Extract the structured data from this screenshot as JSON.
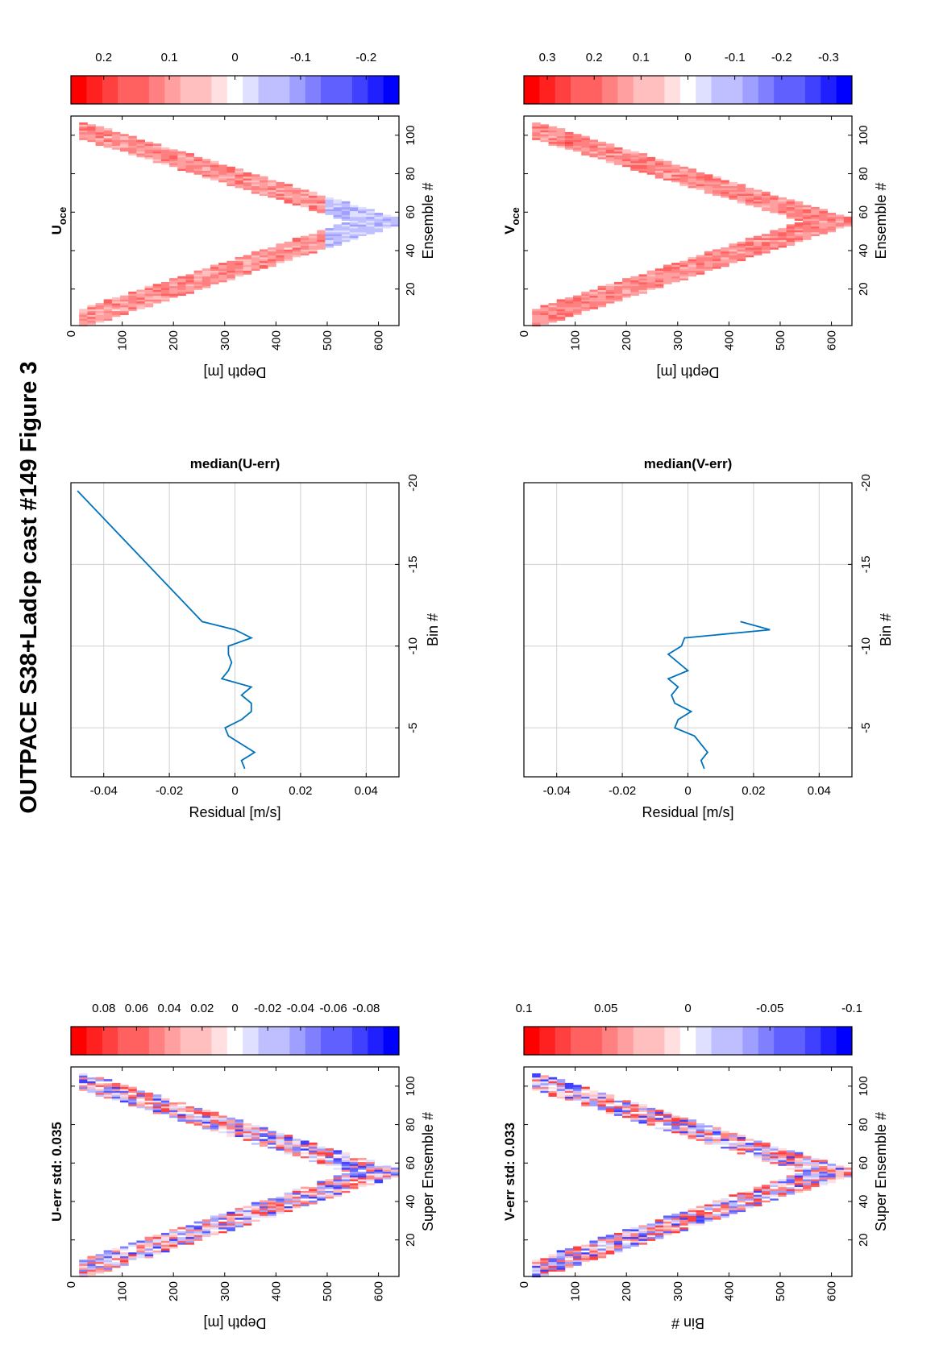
{
  "figure": {
    "title": "OUTPACE S38+Ladcp cast #149  Figure 3"
  },
  "colors": {
    "negative": "#0000ff",
    "zero": "#ffffff",
    "positive": "#ff0000",
    "line": "#0072bd",
    "grid": "#d0d0d0"
  },
  "chart_data": [
    {
      "id": "u-err",
      "type": "heatmap",
      "title": "U-err std: 0.035",
      "title_sub": "",
      "xlabel": "Super Ensemble #",
      "ylabel": "Depth [m]",
      "xlim": [
        1,
        110
      ],
      "ylim": [
        0,
        640
      ],
      "xticks": [
        "20",
        "40",
        "60",
        "80",
        "100"
      ],
      "yticks": [
        "0",
        "100",
        "200",
        "300",
        "400",
        "500",
        "600"
      ],
      "clim": [
        -0.1,
        0.1
      ],
      "colorbar_ticks": [
        "0.08",
        "0.06",
        "0.04",
        "0.02",
        "0",
        "-0.02",
        "-0.04",
        "-0.06",
        "-0.08"
      ],
      "pattern": {
        "n_ensembles": 106,
        "bottom_ensemble": 55,
        "max_depth": 640,
        "top_depth": 20,
        "band_width": 90,
        "amplitude": 0.08
      }
    },
    {
      "id": "u-resid",
      "type": "line",
      "title": "median(U-err)",
      "xlabel": "Residual [m/s]",
      "ylabel": "Bin #",
      "xlim": [
        -0.05,
        0.05
      ],
      "ylim": [
        -20,
        -2
      ],
      "xticks": [
        "-0.04",
        "-0.02",
        "0",
        "0.02",
        "0.04"
      ],
      "yticks": [
        "-5",
        "-10",
        "-15",
        "-20"
      ],
      "x": [
        0.003,
        0.002,
        0.006,
        -0.002,
        -0.003,
        0.002,
        0.005,
        0.005,
        0.002,
        0.005,
        -0.004,
        -0.002,
        -0.001,
        -0.002,
        -0.002,
        0.005,
        0.0,
        -0.01,
        -0.048
      ],
      "y": [
        -2.5,
        -3,
        -3.5,
        -4.5,
        -5,
        -5.5,
        -6,
        -6.5,
        -7,
        -7.5,
        -8,
        -8.5,
        -9,
        -9.5,
        -10,
        -10.5,
        -11,
        -11.5,
        -19.5
      ]
    },
    {
      "id": "u-oce",
      "type": "heatmap",
      "title": "U",
      "title_sub": "oce",
      "xlabel": "Ensemble #",
      "ylabel": "Depth [m]",
      "xlim": [
        1,
        110
      ],
      "ylim": [
        0,
        640
      ],
      "xticks": [
        "20",
        "40",
        "60",
        "80",
        "100"
      ],
      "yticks": [
        "0",
        "100",
        "200",
        "300",
        "400",
        "500",
        "600"
      ],
      "clim": [
        -0.25,
        0.25
      ],
      "colorbar_ticks": [
        "0.2",
        "0.1",
        "0",
        "-0.1",
        "-0.2"
      ],
      "pattern": {
        "n_ensembles": 106,
        "bottom_ensemble": 55,
        "max_depth": 640,
        "top_depth": 20,
        "band_width": 90,
        "amplitude": 0.12
      }
    },
    {
      "id": "v-err",
      "type": "heatmap",
      "title": "V-err std: 0.033",
      "title_sub": "",
      "xlabel": "Super Ensemble #",
      "ylabel": "Bin #",
      "xlim": [
        1,
        110
      ],
      "ylim": [
        0,
        640
      ],
      "xticks": [
        "20",
        "40",
        "60",
        "80",
        "100"
      ],
      "yticks": [
        "0",
        "100",
        "200",
        "300",
        "400",
        "500",
        "600"
      ],
      "clim": [
        -0.1,
        0.1
      ],
      "colorbar_ticks": [
        "0.1",
        "0.05",
        "0",
        "-0.05",
        "-0.1"
      ],
      "pattern": {
        "n_ensembles": 106,
        "bottom_ensemble": 55,
        "max_depth": 640,
        "top_depth": 20,
        "band_width": 90,
        "amplitude": 0.08
      }
    },
    {
      "id": "v-resid",
      "type": "line",
      "title": "median(V-err)",
      "xlabel": "Residual [m/s]",
      "ylabel": "Bin #",
      "xlim": [
        -0.05,
        0.05
      ],
      "ylim": [
        -20,
        -2
      ],
      "xticks": [
        "-0.04",
        "-0.02",
        "0",
        "0.02",
        "0.04"
      ],
      "yticks": [
        "-5",
        "-10",
        "-15",
        "-20"
      ],
      "x": [
        0.005,
        0.004,
        0.006,
        0.002,
        -0.004,
        -0.003,
        0.001,
        -0.004,
        -0.005,
        -0.003,
        -0.006,
        0.0,
        -0.003,
        -0.006,
        -0.002,
        -0.001,
        0.025,
        0.016
      ],
      "y": [
        -2.5,
        -3,
        -3.5,
        -4.5,
        -5,
        -5.5,
        -6,
        -6.5,
        -7,
        -7.5,
        -8,
        -8.5,
        -9,
        -9.5,
        -10,
        -10.5,
        -11,
        -11.5
      ]
    },
    {
      "id": "v-oce",
      "type": "heatmap",
      "title": "V",
      "title_sub": "oce",
      "xlabel": "Ensemble #",
      "ylabel": "Depth [m]",
      "xlim": [
        1,
        110
      ],
      "ylim": [
        0,
        640
      ],
      "xticks": [
        "20",
        "40",
        "60",
        "80",
        "100"
      ],
      "yticks": [
        "0",
        "100",
        "200",
        "300",
        "400",
        "500",
        "600"
      ],
      "clim": [
        -0.35,
        0.35
      ],
      "colorbar_ticks": [
        "0.3",
        "0.2",
        "0.1",
        "0",
        "-0.1",
        "-0.2",
        "-0.3"
      ],
      "pattern": {
        "n_ensembles": 106,
        "bottom_ensemble": 55,
        "max_depth": 640,
        "top_depth": 20,
        "band_width": 90,
        "amplitude": 0.18
      }
    }
  ]
}
